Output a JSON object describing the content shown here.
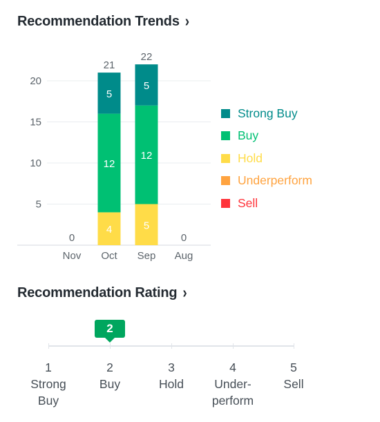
{
  "trends_section": {
    "title": "Recommendation Trends",
    "chevron": "›"
  },
  "rating_section": {
    "title": "Recommendation Rating",
    "chevron": "›"
  },
  "colors": {
    "strong_buy": "#008b8a",
    "buy": "#00c073",
    "hold": "#ffdc48",
    "underperform": "#ffa33f",
    "sell": "#ff333a",
    "marker": "#00a65e"
  },
  "chart_data": {
    "type": "bar",
    "stacked": true,
    "categories": [
      "Nov",
      "Oct",
      "Sep",
      "Aug"
    ],
    "series": [
      {
        "name": "Strong Buy",
        "values": [
          0,
          5,
          5,
          0
        ]
      },
      {
        "name": "Buy",
        "values": [
          0,
          12,
          12,
          0
        ]
      },
      {
        "name": "Hold",
        "values": [
          0,
          4,
          5,
          0
        ]
      },
      {
        "name": "Underperform",
        "values": [
          0,
          0,
          0,
          0
        ]
      },
      {
        "name": "Sell",
        "values": [
          0,
          0,
          0,
          0
        ]
      }
    ],
    "totals": [
      0,
      21,
      22,
      0
    ],
    "yticks": [
      5,
      10,
      15,
      20
    ],
    "ylim": [
      0,
      22
    ],
    "grid": true,
    "legend_position": "right"
  },
  "rating": {
    "current_value": 2,
    "scale": [
      {
        "number": "1",
        "label": "Strong Buy"
      },
      {
        "number": "2",
        "label": "Buy"
      },
      {
        "number": "3",
        "label": "Hold"
      },
      {
        "number": "4",
        "label": "Under- perform"
      },
      {
        "number": "5",
        "label": "Sell"
      }
    ]
  }
}
